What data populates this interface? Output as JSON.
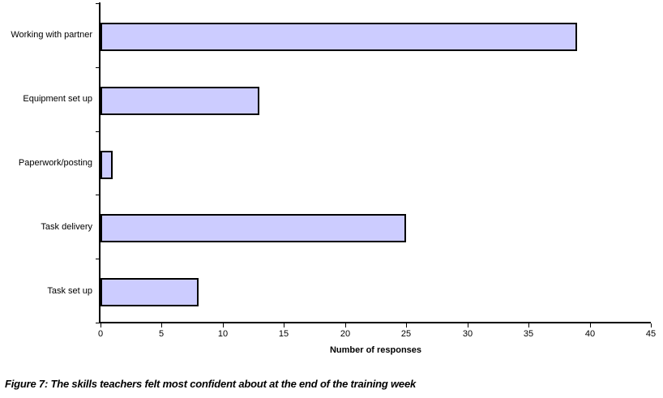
{
  "chart_data": {
    "type": "bar",
    "orientation": "horizontal",
    "title": "",
    "categories": [
      "Working with partner",
      "Equipment set up",
      "Paperwork/posting",
      "Task delivery",
      "Task set up"
    ],
    "values": [
      39,
      13,
      1,
      25,
      8
    ],
    "xlabel": "Number of responses",
    "ylabel": "",
    "xlim": [
      0,
      45
    ],
    "xticks": [
      0,
      5,
      10,
      15,
      20,
      25,
      30,
      35,
      40,
      45
    ],
    "grid": false,
    "legend": "none",
    "bar_fill_color": "#ccccff",
    "bar_border_color": "#000000",
    "axis_color": "#000000"
  },
  "caption": "Figure 7: The skills teachers felt most confident about at the end of the training week"
}
